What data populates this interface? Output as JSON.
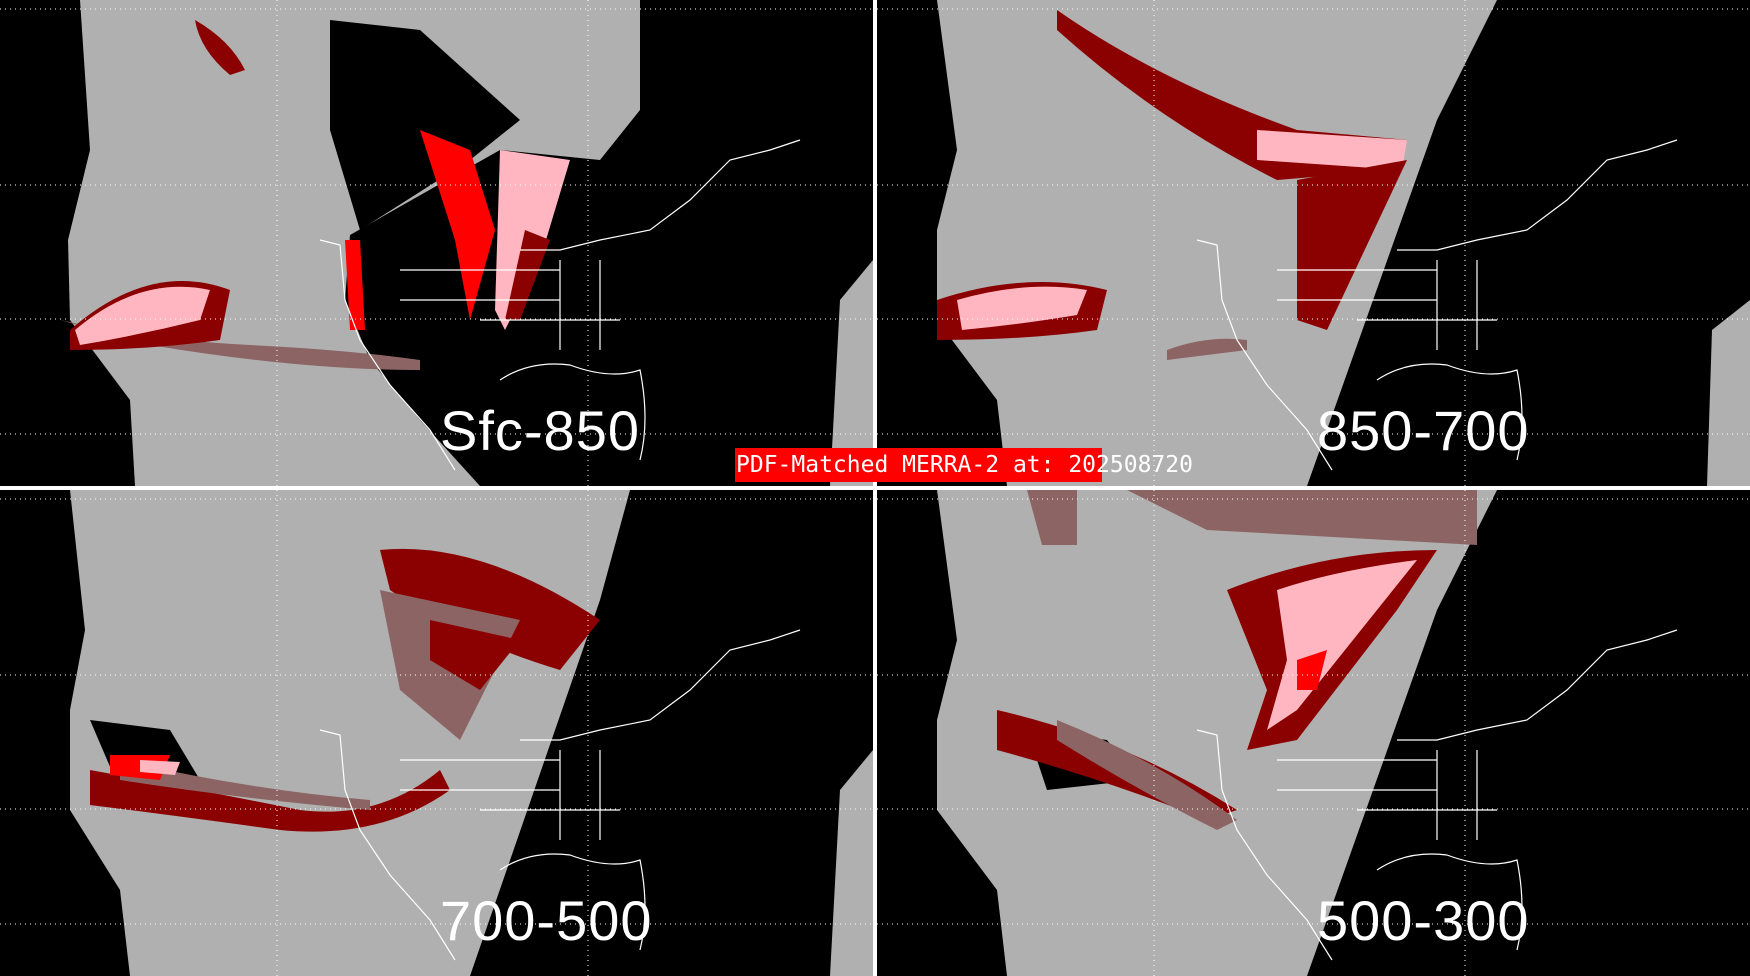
{
  "title": "PDF-Matched MERRA-2 at: 202508720",
  "panels": [
    {
      "label": "Sfc-850"
    },
    {
      "label": "850-700"
    },
    {
      "label": "700-500"
    },
    {
      "label": "500-300"
    }
  ],
  "colors": {
    "background": "#000000",
    "swath": "#b0b0b0",
    "dark_red": "#8b0000",
    "red": "#ff0000",
    "pink": "#ffb6c1",
    "muted_red": "#8c6464",
    "coastline": "#ffffff",
    "title_box": "#ff0000"
  }
}
